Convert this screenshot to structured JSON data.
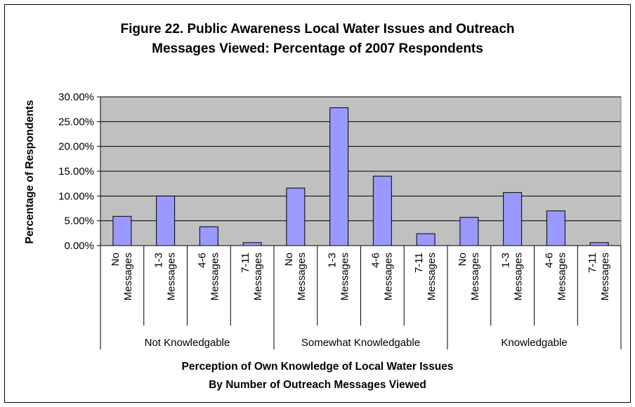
{
  "chart_data": {
    "type": "bar",
    "title_line1": "Figure 22.  Public Awareness Local Water Issues and Outreach",
    "title_line2": "Messages Viewed:  Percentage of 2007 Respondents",
    "ylabel": "Percentage of Respondents",
    "xlabel_line1": "Perception of Own Knowledge of Local Water Issues",
    "xlabel_line2": "By Number of Outreach Messages Viewed",
    "ylim": [
      0,
      0.3
    ],
    "y_ticks": [
      "0.00%",
      "5.00%",
      "10.00%",
      "15.00%",
      "20.00%",
      "25.00%",
      "30.00%"
    ],
    "grid": true,
    "bar_color": "#9999ff",
    "plot_background": "#c0c0c0",
    "groups": [
      {
        "label": "Not Knowledgable",
        "categories": [
          {
            "line1": "No",
            "line2": "Messages"
          },
          {
            "line1": "1-3",
            "line2": "Messages"
          },
          {
            "line1": "4-6",
            "line2": "Messages"
          },
          {
            "line1": "7-11",
            "line2": "Messages"
          }
        ],
        "values": [
          0.059,
          0.1,
          0.038,
          0.006
        ]
      },
      {
        "label": "Somewhat Knowledgable",
        "categories": [
          {
            "line1": "No",
            "line2": "Messages"
          },
          {
            "line1": "1-3",
            "line2": "Messages"
          },
          {
            "line1": "4-6",
            "line2": "Messages"
          },
          {
            "line1": "7-11",
            "line2": "Messages"
          }
        ],
        "values": [
          0.116,
          0.278,
          0.14,
          0.024
        ]
      },
      {
        "label": "Knowledgable",
        "categories": [
          {
            "line1": "No",
            "line2": "Messages"
          },
          {
            "line1": "1-3",
            "line2": "Messages"
          },
          {
            "line1": "4-6",
            "line2": "Messages"
          },
          {
            "line1": "7-11",
            "line2": "Messages"
          }
        ],
        "values": [
          0.057,
          0.107,
          0.07,
          0.006
        ]
      }
    ]
  }
}
